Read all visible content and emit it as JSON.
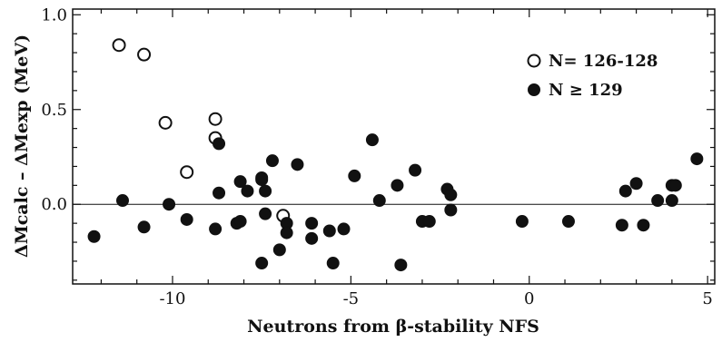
{
  "chart_data": {
    "type": "scatter",
    "xlabel": "Neutrons from β-stability  NFS",
    "ylabel": "ΔMcalc – ΔMexp (MeV)",
    "xlim": [
      -12.8,
      5.2
    ],
    "ylim": [
      -0.42,
      1.03
    ],
    "xticks": [
      -10,
      -5,
      0,
      5
    ],
    "xtick_labels": [
      "-10",
      "-5",
      "0",
      "5"
    ],
    "yticks": [
      0.0,
      0.5,
      1.0
    ],
    "ytick_labels": [
      "0.0",
      "0.5",
      "1.0"
    ],
    "reference_line_y": 0,
    "grid": false,
    "legend_position": "top-right",
    "series": [
      {
        "name": "N= 126-128",
        "marker": "open-circle",
        "points": [
          [
            -11.5,
            0.84
          ],
          [
            -10.8,
            0.79
          ],
          [
            -10.2,
            0.43
          ],
          [
            -8.8,
            0.45
          ],
          [
            -8.8,
            0.35
          ],
          [
            -9.6,
            0.17
          ],
          [
            -6.9,
            -0.06
          ]
        ]
      },
      {
        "name": "N ≥ 129",
        "marker": "filled-circle",
        "points": [
          [
            -12.2,
            -0.17
          ],
          [
            -11.4,
            0.02
          ],
          [
            -10.8,
            -0.12
          ],
          [
            -10.1,
            0.0
          ],
          [
            -9.6,
            -0.08
          ],
          [
            -8.8,
            -0.13
          ],
          [
            -8.7,
            0.32
          ],
          [
            -8.7,
            0.06
          ],
          [
            -8.2,
            -0.1
          ],
          [
            -8.1,
            0.12
          ],
          [
            -8.1,
            -0.09
          ],
          [
            -7.9,
            0.07
          ],
          [
            -7.5,
            0.13
          ],
          [
            -7.5,
            0.14
          ],
          [
            -7.4,
            0.07
          ],
          [
            -7.4,
            -0.05
          ],
          [
            -7.5,
            -0.31
          ],
          [
            -7.2,
            0.23
          ],
          [
            -7.0,
            -0.24
          ],
          [
            -6.8,
            -0.1
          ],
          [
            -6.8,
            -0.15
          ],
          [
            -6.5,
            0.21
          ],
          [
            -6.1,
            -0.1
          ],
          [
            -6.1,
            -0.18
          ],
          [
            -5.6,
            -0.14
          ],
          [
            -5.5,
            -0.31
          ],
          [
            -5.2,
            -0.13
          ],
          [
            -4.9,
            0.15
          ],
          [
            -4.4,
            0.34
          ],
          [
            -4.2,
            0.02
          ],
          [
            -3.7,
            0.1
          ],
          [
            -3.6,
            -0.32
          ],
          [
            -3.2,
            0.18
          ],
          [
            -3.0,
            -0.09
          ],
          [
            -2.8,
            -0.09
          ],
          [
            -2.3,
            0.08
          ],
          [
            -2.2,
            0.05
          ],
          [
            -2.2,
            -0.03
          ],
          [
            -0.2,
            -0.09
          ],
          [
            1.1,
            -0.09
          ],
          [
            2.6,
            -0.11
          ],
          [
            2.7,
            0.07
          ],
          [
            3.0,
            0.11
          ],
          [
            3.2,
            -0.11
          ],
          [
            3.6,
            0.02
          ],
          [
            4.0,
            0.1
          ],
          [
            4.0,
            0.02
          ],
          [
            4.1,
            0.1
          ],
          [
            4.7,
            0.24
          ]
        ]
      }
    ]
  }
}
